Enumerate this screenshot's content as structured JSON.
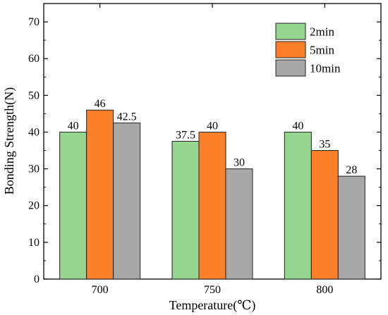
{
  "chart_data": {
    "type": "bar",
    "title": "",
    "xlabel": "Temperature(℃)",
    "ylabel": "Bonding Strength(N)",
    "categories": [
      "700",
      "750",
      "800"
    ],
    "series": [
      {
        "name": "2min",
        "values": [
          40,
          37.5,
          40
        ],
        "labels": [
          "40",
          "37.5",
          "40"
        ],
        "color": "#95d58f"
      },
      {
        "name": "5min",
        "values": [
          46,
          40,
          35
        ],
        "labels": [
          "46",
          "40",
          "35"
        ],
        "color": "#fc7f2a"
      },
      {
        "name": "10min",
        "values": [
          42.5,
          30,
          28
        ],
        "labels": [
          "42.5",
          "30",
          "28"
        ],
        "color": "#a8a8a8"
      }
    ],
    "ylim": [
      0,
      75
    ],
    "yticks": [
      "0",
      "10",
      "20",
      "30",
      "40",
      "50",
      "60",
      "70"
    ],
    "grid": false,
    "legend_position": "top-right"
  }
}
